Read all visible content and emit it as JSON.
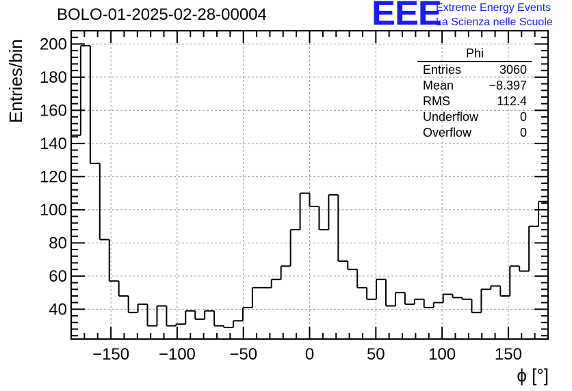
{
  "title": "BOLO-01-2025-02-28-00004",
  "logo": {
    "mark": "EEE",
    "line1": "Extreme Energy Events",
    "line2": "La Scienza nelle Scuole",
    "color": "#1a1aff"
  },
  "stats": {
    "name": "Phi",
    "rows": [
      {
        "label": "Entries",
        "value": "3060"
      },
      {
        "label": "Mean",
        "value": "−8.397"
      },
      {
        "label": "RMS",
        "value": "112.4"
      },
      {
        "label": "Underflow",
        "value": "0"
      },
      {
        "label": "Overflow",
        "value": "0"
      }
    ]
  },
  "chart_data": {
    "type": "bar",
    "histogram": true,
    "title": "BOLO-01-2025-02-28-00004",
    "xlabel": "ϕ [°]",
    "ylabel": "Entries/bin",
    "xlim": [
      -180,
      180
    ],
    "ylim": [
      22,
      208
    ],
    "bin_width": 7.2,
    "grid": true,
    "xticks": [
      -150,
      -100,
      -50,
      0,
      50,
      100,
      150
    ],
    "yticks": [
      40,
      60,
      80,
      100,
      120,
      140,
      160,
      180,
      200
    ],
    "xtick_labels": [
      "−150",
      "−100",
      "−50",
      "0",
      "50",
      "100",
      "150"
    ],
    "ytick_labels": [
      "40",
      "60",
      "80",
      "100",
      "120",
      "140",
      "160",
      "180",
      "200"
    ],
    "values": [
      145,
      199,
      128,
      82,
      57,
      48,
      38,
      43,
      30,
      42,
      30,
      31,
      39,
      34,
      39,
      30,
      29,
      33,
      41,
      53,
      53,
      58,
      66,
      88,
      110,
      102,
      88,
      109,
      69,
      64,
      53,
      46,
      58,
      42,
      50,
      43,
      46,
      41,
      44,
      49,
      47,
      46,
      38,
      52,
      54,
      48,
      66,
      63,
      90,
      105
    ]
  }
}
